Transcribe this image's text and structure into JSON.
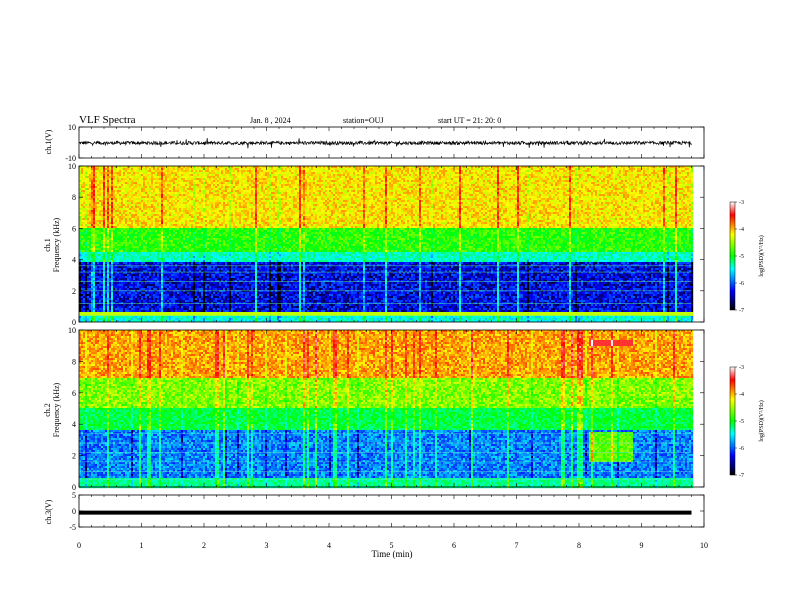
{
  "header": {
    "title": "VLF Spectra",
    "date": "Jan. 8 , 2024",
    "station": "station=OUJ",
    "start": "start UT =  21: 20: 0"
  },
  "colorbar": {
    "label": "log(PSD)(V²/Hz)",
    "ticks": [
      "-3",
      "-4",
      "-5",
      "-6",
      "-7"
    ],
    "colors": [
      "#ffffff",
      "#ff0000",
      "#ffff00",
      "#00ff00",
      "#00ffff",
      "#0000ff",
      "#000000"
    ]
  },
  "chart_data": [
    {
      "type": "line",
      "name": "ch1-waveform",
      "ylabel": "ch.1(V)",
      "ylim": [
        -10,
        10
      ],
      "y_ticks": [
        "10",
        "-10"
      ],
      "xlim": [
        0,
        10
      ],
      "baseline": 0,
      "amplitude_range": [
        -2,
        2
      ]
    },
    {
      "type": "heatmap",
      "name": "ch1-spectrogram",
      "ylabel": [
        "ch.1",
        "Frequency (kHz)"
      ],
      "ylim": [
        0,
        10
      ],
      "y_ticks": [
        "0",
        "2",
        "4",
        "6",
        "8",
        "10"
      ],
      "xlim": [
        0,
        9.8
      ],
      "zlim": [
        -7,
        -3
      ]
    },
    {
      "type": "heatmap",
      "name": "ch2-spectrogram",
      "ylabel": [
        "ch.2",
        "Frequency (kHz)"
      ],
      "ylim": [
        0,
        10
      ],
      "y_ticks": [
        "0",
        "2",
        "4",
        "6",
        "8",
        "10"
      ],
      "xlim": [
        0,
        9.8
      ],
      "zlim": [
        -7,
        -3
      ]
    },
    {
      "type": "line",
      "name": "ch3-waveform",
      "ylabel": "ch.3(V)",
      "ylim": [
        -5,
        5
      ],
      "y_ticks": [
        "5",
        "0",
        "-5"
      ],
      "xlim": [
        0,
        10
      ],
      "baseline": -0.5
    }
  ],
  "xaxis": {
    "label": "Time (min)",
    "ticks": [
      "0",
      "1",
      "2",
      "3",
      "4",
      "5",
      "6",
      "7",
      "8",
      "9",
      "10"
    ]
  }
}
